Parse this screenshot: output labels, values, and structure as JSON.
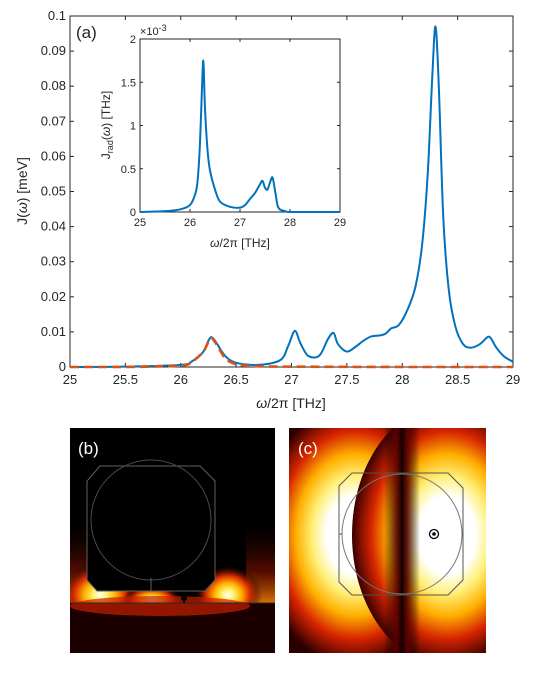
{
  "chart_data": [
    {
      "type": "line",
      "panel_label": "(a)",
      "xlabel_parts": [
        "ω",
        "/2π [THz]"
      ],
      "ylabel_parts": [
        "J(",
        "ω",
        ") [meV]"
      ],
      "xlim": [
        25,
        29
      ],
      "ylim": [
        0,
        0.1
      ],
      "xticks": [
        "25",
        "25.5",
        "26",
        "26.5",
        "27",
        "27.5",
        "28",
        "28.5",
        "29"
      ],
      "yticks": [
        "0",
        "0.01",
        "0.02",
        "0.03",
        "0.04",
        "0.05",
        "0.06",
        "0.07",
        "0.08",
        "0.09",
        "0.1"
      ],
      "grid": false,
      "series": [
        {
          "style": "solid",
          "color": "#0072BD",
          "x": [
            25.0,
            25.5,
            26.0,
            26.1,
            26.2,
            26.25,
            26.28,
            26.32,
            26.4,
            26.5,
            26.7,
            26.9,
            26.97,
            27.03,
            27.08,
            27.15,
            27.25,
            27.33,
            27.38,
            27.42,
            27.5,
            27.58,
            27.65,
            27.72,
            27.8,
            27.85,
            27.9,
            27.97,
            28.05,
            28.12,
            28.18,
            28.23,
            28.27,
            28.3,
            28.33,
            28.37,
            28.42,
            28.48,
            28.55,
            28.62,
            28.7,
            28.77,
            28.8,
            28.85,
            28.92,
            29.0
          ],
          "y": [
            0.0,
            0.0001,
            0.0006,
            0.0016,
            0.0042,
            0.0075,
            0.0085,
            0.007,
            0.0032,
            0.0012,
            0.0006,
            0.002,
            0.006,
            0.0103,
            0.0068,
            0.0032,
            0.0032,
            0.008,
            0.0097,
            0.0065,
            0.0044,
            0.0058,
            0.0075,
            0.0087,
            0.009,
            0.0095,
            0.011,
            0.012,
            0.0165,
            0.023,
            0.035,
            0.055,
            0.082,
            0.097,
            0.08,
            0.043,
            0.022,
            0.0115,
            0.0065,
            0.0055,
            0.0065,
            0.0085,
            0.0082,
            0.0055,
            0.003,
            0.0015
          ]
        },
        {
          "style": "dashed",
          "color": "#D95319",
          "x": [
            25.0,
            25.5,
            26.0,
            26.1,
            26.2,
            26.25,
            26.28,
            26.32,
            26.4,
            26.5,
            26.7,
            27.0,
            28.0,
            29.0
          ],
          "y": [
            0.0,
            0.0,
            0.0004,
            0.0015,
            0.0042,
            0.0072,
            0.0082,
            0.0066,
            0.0026,
            0.0008,
            0.0002,
            0.0001,
            0.0,
            0.0
          ]
        }
      ]
    },
    {
      "type": "line",
      "inset": true,
      "scale_note": "×10",
      "scale_exp": "-3",
      "xlabel_parts": [
        "ω",
        "/2π [THz]"
      ],
      "ylabel_parts": [
        "J",
        "rad",
        "(",
        "ω",
        ") [THz]"
      ],
      "xlim": [
        25,
        29
      ],
      "ylim": [
        0,
        0.002
      ],
      "xticks": [
        "25",
        "26",
        "27",
        "28",
        "29"
      ],
      "yticks": [
        "0",
        "0.5",
        "1",
        "1.5",
        "2"
      ],
      "series": [
        {
          "style": "solid",
          "color": "#0072BD",
          "x": [
            25.0,
            25.5,
            25.8,
            26.0,
            26.1,
            26.15,
            26.2,
            26.25,
            26.27,
            26.3,
            26.35,
            26.4,
            26.5,
            26.6,
            26.8,
            27.0,
            27.1,
            27.2,
            27.3,
            27.4,
            27.45,
            27.5,
            27.55,
            27.6,
            27.65,
            27.7,
            27.75,
            27.8,
            27.9,
            28.0,
            28.5,
            29.0
          ],
          "y": [
            0.0,
            1e-05,
            3e-05,
            8e-05,
            0.0002,
            0.00035,
            0.0008,
            0.0016,
            0.00172,
            0.0012,
            0.00072,
            0.00048,
            0.00026,
            0.00012,
            6e-05,
            5e-05,
            8e-05,
            0.00015,
            0.00022,
            0.00032,
            0.00036,
            0.00028,
            0.00026,
            0.00034,
            0.0004,
            0.00025,
            8e-05,
            3e-05,
            1e-05,
            0.0,
            0.0,
            0.0
          ]
        }
      ]
    }
  ],
  "panels": {
    "b": {
      "label": "(b)"
    },
    "c": {
      "label": "(c)"
    }
  }
}
